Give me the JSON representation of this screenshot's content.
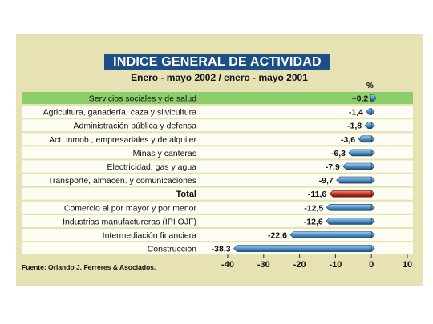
{
  "chart_data": {
    "type": "bar",
    "orientation": "horizontal",
    "title": "INDICE GENERAL DE ACTIVIDAD",
    "subtitle": "Enero - mayo 2002 / enero - mayo 2001",
    "unit": "%",
    "categories": [
      "Servicios sociales y de salud",
      "Agricultura, ganadería, caza y silvicultura",
      "Administración pública y defensa",
      "Act. inmob., empresariales y de alquiler",
      "Minas y canteras",
      "Electricidad, gas y agua",
      "Transporte, almacen. y comunicaciones",
      "Total",
      "Comercio al por mayor y por menor",
      "Industrias manufactureras (IPI OJF)",
      "Intermediación financiera",
      "Construcción"
    ],
    "values": [
      0.2,
      -1.4,
      -1.8,
      -3.6,
      -6.3,
      -7.9,
      -9.7,
      -11.6,
      -12.5,
      -12.6,
      -22.6,
      -38.3
    ],
    "value_labels": [
      "+0,2",
      "-1,4",
      "-1,8",
      "-3,6",
      "-6,3",
      "-7,9",
      "-9,7",
      "-11,6",
      "-12,5",
      "-12,6",
      "-22,6",
      "-38,3"
    ],
    "xlim": [
      -40,
      10
    ],
    "xticks": [
      -40,
      -30,
      -20,
      -10,
      0,
      10
    ],
    "xtick_labels": [
      "-40",
      "-30",
      "-20",
      "-10",
      "0",
      "10"
    ],
    "colors": {
      "panel": "#e6e2b3",
      "title_bg": "#1c4f86",
      "row_light": "#fdfdf3",
      "row_highlight": "#8ccf6a",
      "bar_normal": "#3d7fb3",
      "bar_total": "#b3261e"
    },
    "highlight_index": 0,
    "total_index": 7
  },
  "source": "Fuente: Orlando J. Ferreres & Asociados."
}
